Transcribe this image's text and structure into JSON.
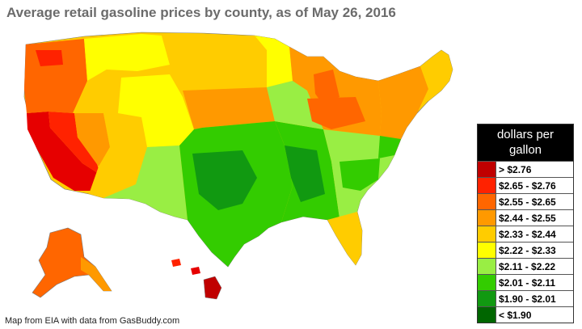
{
  "title": "Average retail gasoline prices by county, as of May 26, 2016",
  "legend": {
    "header_line1": "dollars per",
    "header_line2": "gallon",
    "items": [
      {
        "label": "> $2.76",
        "color": "#c00000"
      },
      {
        "label": "$2.65 - $2.76",
        "color": "#ff2200"
      },
      {
        "label": "$2.55 - $2.65",
        "color": "#ff6600"
      },
      {
        "label": "$2.44 - $2.55",
        "color": "#ff9900"
      },
      {
        "label": "$2.33 - $2.44",
        "color": "#ffcc00"
      },
      {
        "label": "$2.22 - $2.33",
        "color": "#ffff00"
      },
      {
        "label": "$2.11 - $2.22",
        "color": "#99ee44"
      },
      {
        "label": "$2.01 - $2.11",
        "color": "#33cc00"
      },
      {
        "label": "$1.90 - $2.01",
        "color": "#119911"
      },
      {
        "label": "< $1.90",
        "color": "#006600"
      }
    ]
  },
  "credit": "Map from EIA with data from GasBuddy.com"
}
